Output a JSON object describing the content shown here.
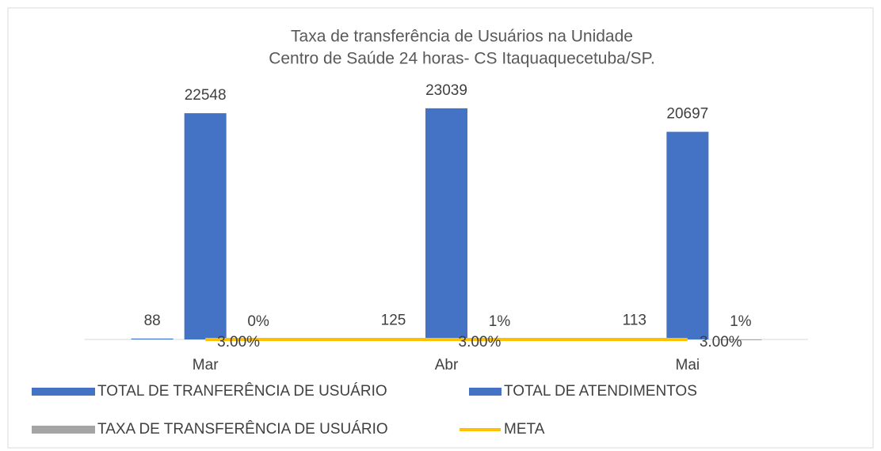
{
  "chart_data": {
    "type": "bar",
    "title": "Taxa de transferência de Usuários na Unidade",
    "subtitle": "Centro de Saúde 24 horas- CS Itaquaquecetuba/SP.",
    "categories": [
      "Mar",
      "Abr",
      "Mai"
    ],
    "ylim": [
      0,
      25000
    ],
    "series": [
      {
        "name": "TOTAL DE TRANFERÊNCIA DE USUÁRIO",
        "color": "#4472c4",
        "values": [
          88,
          125,
          113
        ]
      },
      {
        "name": "TOTAL DE ATENDIMENTOS",
        "color": "#4472c4",
        "values": [
          22548,
          23039,
          20697
        ]
      },
      {
        "name": "TAXA DE TRANSFERÊNCIA DE USUÁRIO",
        "color": "#a5a5a5",
        "values": [
          0.39,
          0.54,
          0.55
        ],
        "value_labels": [
          "0%",
          "1%",
          "1%"
        ]
      },
      {
        "name": "META",
        "color": "#ffc000",
        "type": "line",
        "values": [
          3,
          3,
          3
        ],
        "value_labels": [
          "3.00%",
          "3.00%",
          "3.00%"
        ]
      }
    ]
  }
}
